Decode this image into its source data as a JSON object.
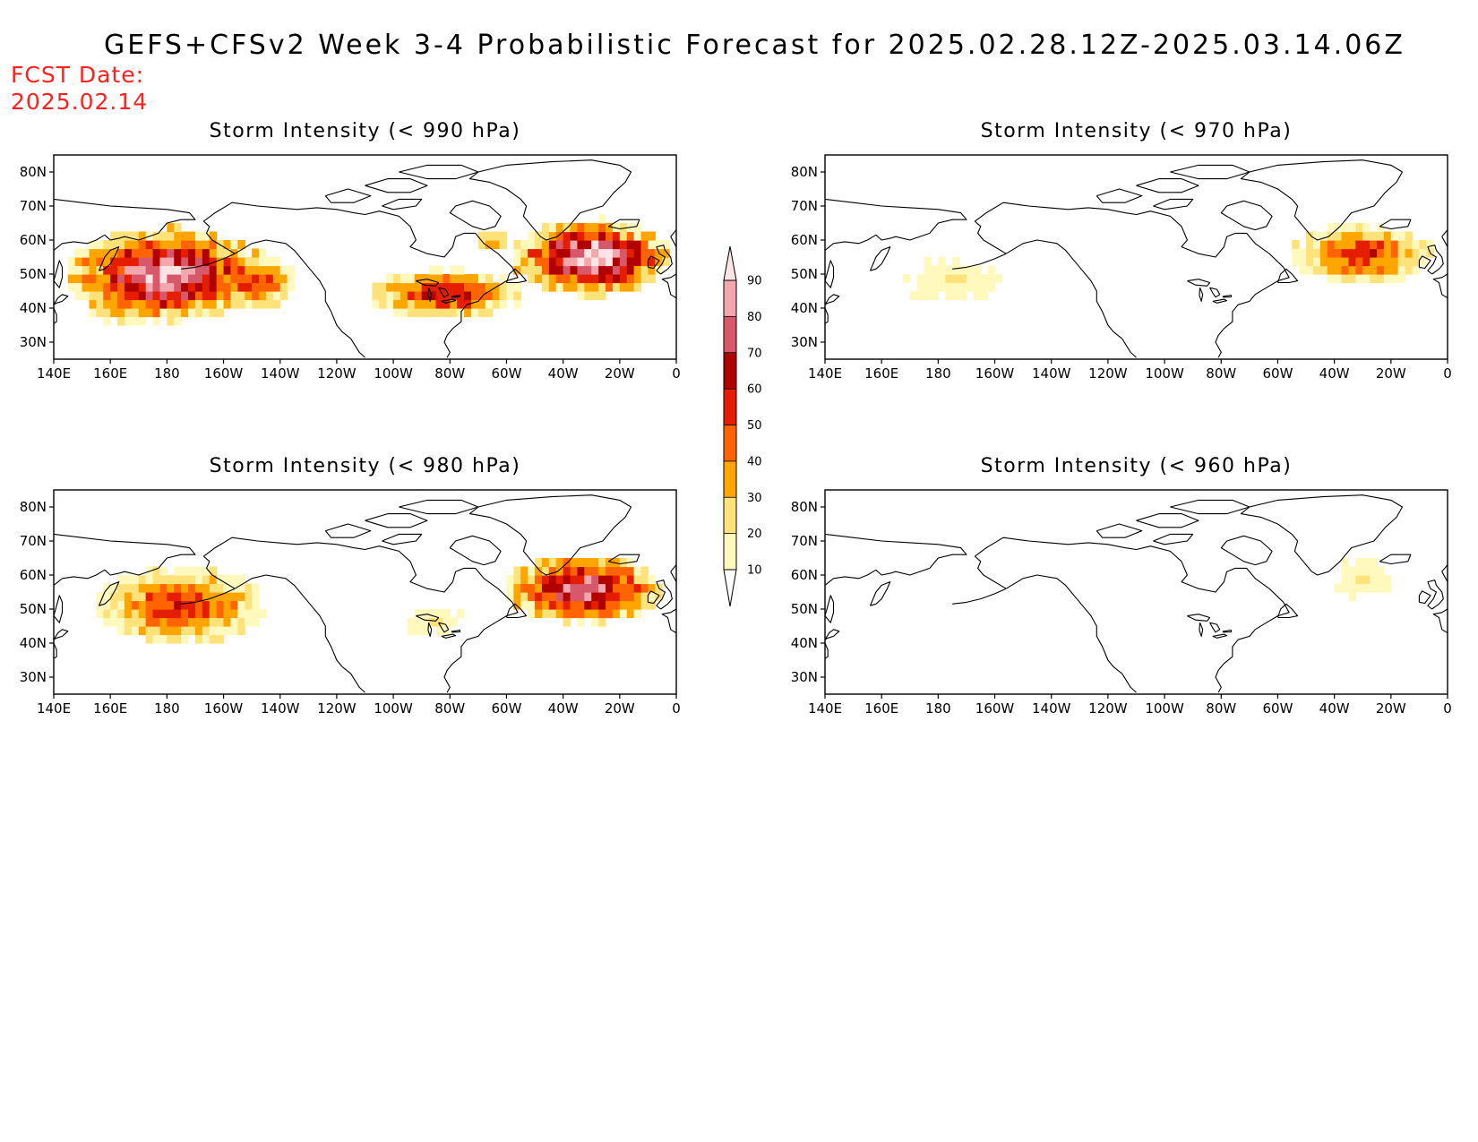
{
  "header": {
    "title": "GEFS+CFSv2 Week 3-4 Probabilistic Forecast for 2025.02.28.12Z-2025.03.14.06Z",
    "fcst_label": "FCST Date:",
    "fcst_date": "2025.02.14"
  },
  "axes": {
    "x_ticks": [
      "140E",
      "160E",
      "180",
      "160W",
      "140W",
      "120W",
      "100W",
      "80W",
      "60W",
      "40W",
      "20W",
      "0"
    ],
    "y_ticks": [
      "80N",
      "70N",
      "60N",
      "50N",
      "40N",
      "30N"
    ],
    "lon_range": [
      140,
      360
    ],
    "lat_range": [
      25,
      85
    ]
  },
  "colorbar": {
    "levels": [
      10,
      20,
      30,
      40,
      50,
      60,
      70,
      80,
      90
    ],
    "labels": [
      "10",
      "20",
      "30",
      "40",
      "50",
      "60",
      "70",
      "80",
      "90"
    ],
    "colors": [
      "#fff9bd",
      "#ffe27a",
      "#ffa500",
      "#ff6400",
      "#e61e00",
      "#b00000",
      "#d6586a",
      "#f2a6ae",
      "#ffe4e6"
    ]
  },
  "panels": [
    {
      "title": "Storm Intensity (< 990 hPa)",
      "regions": [
        {
          "lon": 180,
          "lat": 50,
          "rlon": 28,
          "rlat": 11,
          "peak": 85
        },
        {
          "lon": 210,
          "lat": 48,
          "rlon": 12,
          "rlat": 7,
          "peak": 55
        },
        {
          "lon": 165,
          "lat": 43,
          "rlon": 12,
          "rlat": 6,
          "peak": 50
        },
        {
          "lon": 278,
          "lat": 44,
          "rlon": 22,
          "rlat": 6,
          "peak": 60
        },
        {
          "lon": 330,
          "lat": 55,
          "rlon": 22,
          "rlat": 9,
          "peak": 92
        },
        {
          "lon": 295,
          "lat": 60,
          "rlon": 5,
          "rlat": 3,
          "peak": 40
        }
      ]
    },
    {
      "title": "Storm Intensity (< 970 hPa)",
      "regions": [
        {
          "lon": 185,
          "lat": 48,
          "rlon": 18,
          "rlat": 6,
          "peak": 22
        },
        {
          "lon": 330,
          "lat": 56,
          "rlon": 20,
          "rlat": 7,
          "peak": 55
        }
      ]
    },
    {
      "title": "Storm Intensity (< 980 hPa)",
      "regions": [
        {
          "lon": 185,
          "lat": 51,
          "rlon": 24,
          "rlat": 9,
          "peak": 55
        },
        {
          "lon": 274,
          "lat": 47,
          "rlon": 12,
          "rlat": 4,
          "peak": 20
        },
        {
          "lon": 327,
          "lat": 56,
          "rlon": 22,
          "rlat": 8,
          "peak": 78
        }
      ]
    },
    {
      "title": "Storm Intensity (< 960 hPa)",
      "regions": [
        {
          "lon": 330,
          "lat": 59,
          "rlon": 11,
          "rlat": 6,
          "peak": 20
        }
      ]
    }
  ]
}
